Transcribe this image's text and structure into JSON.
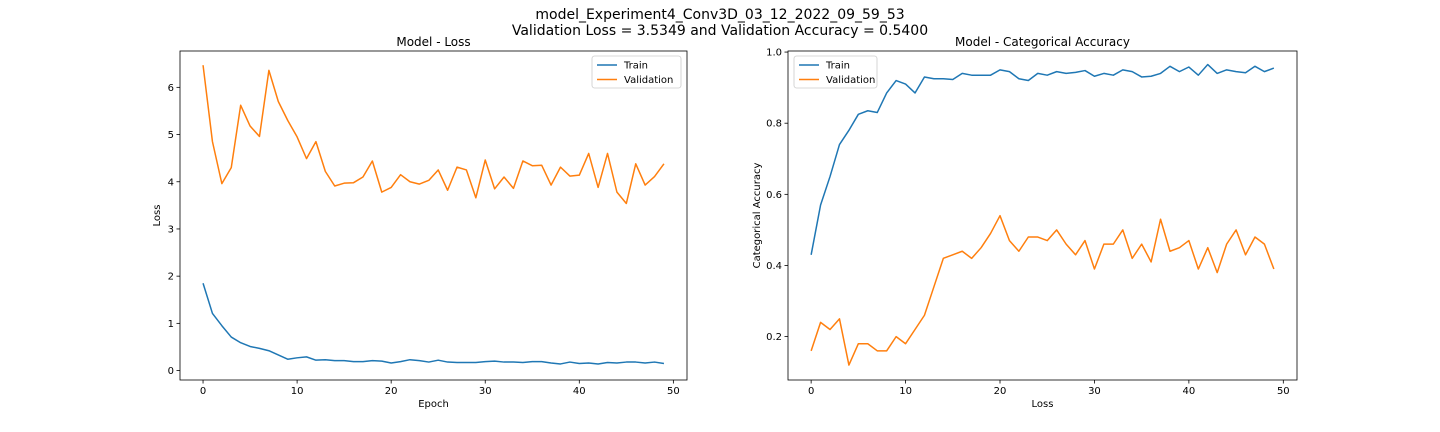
{
  "figure": {
    "suptitle_line1": "model_Experiment4_Conv3D_03_12_2022_09_59_53",
    "suptitle_line2": "Validation Loss = 3.5349 and Validation Accuracy = 0.5400"
  },
  "colors": {
    "train": "#1f77b4",
    "validation": "#ff7f0e",
    "axis": "#000000"
  },
  "chart_data": [
    {
      "type": "line",
      "title": "Model - Loss",
      "xlabel": "Epoch",
      "ylabel": "Loss",
      "xlim": [
        -2.45,
        51.45
      ],
      "ylim": [
        -0.2,
        6.77
      ],
      "xticks": [
        0,
        10,
        20,
        30,
        40,
        50
      ],
      "yticks": [
        0,
        1,
        2,
        3,
        4,
        5,
        6
      ],
      "xtick_labels": [
        "0",
        "10",
        "20",
        "30",
        "40",
        "50"
      ],
      "ytick_labels": [
        "0",
        "1",
        "2",
        "3",
        "4",
        "5",
        "6"
      ],
      "legend": "top-right",
      "grid": false,
      "x": [
        0,
        1,
        2,
        3,
        4,
        5,
        6,
        7,
        8,
        9,
        10,
        11,
        12,
        13,
        14,
        15,
        16,
        17,
        18,
        19,
        20,
        21,
        22,
        23,
        24,
        25,
        26,
        27,
        28,
        29,
        30,
        31,
        32,
        33,
        34,
        35,
        36,
        37,
        38,
        39,
        40,
        41,
        42,
        43,
        44,
        45,
        46,
        47,
        48,
        49
      ],
      "series": [
        {
          "name": "Train",
          "color": "#1f77b4",
          "values": [
            1.85,
            1.21,
            0.95,
            0.71,
            0.59,
            0.51,
            0.47,
            0.42,
            0.33,
            0.24,
            0.27,
            0.29,
            0.22,
            0.23,
            0.21,
            0.21,
            0.19,
            0.19,
            0.21,
            0.2,
            0.16,
            0.19,
            0.23,
            0.21,
            0.18,
            0.22,
            0.18,
            0.17,
            0.17,
            0.17,
            0.19,
            0.2,
            0.18,
            0.18,
            0.17,
            0.19,
            0.19,
            0.16,
            0.14,
            0.18,
            0.15,
            0.16,
            0.14,
            0.17,
            0.16,
            0.18,
            0.18,
            0.16,
            0.18,
            0.15
          ]
        },
        {
          "name": "Validation",
          "color": "#ff7f0e",
          "values": [
            6.47,
            4.85,
            3.96,
            4.3,
            5.62,
            5.18,
            4.96,
            6.36,
            5.7,
            5.3,
            4.95,
            4.49,
            4.85,
            4.22,
            3.91,
            3.97,
            3.98,
            4.1,
            4.44,
            3.78,
            3.88,
            4.15,
            4.0,
            3.95,
            4.03,
            4.25,
            3.82,
            4.31,
            4.25,
            3.66,
            4.46,
            3.85,
            4.1,
            3.86,
            4.44,
            4.34,
            4.35,
            3.93,
            4.31,
            4.12,
            4.14,
            4.6,
            3.88,
            4.6,
            3.78,
            3.54,
            4.38,
            3.93,
            4.11,
            4.38
          ]
        }
      ]
    },
    {
      "type": "line",
      "title": "Model - Categorical Accuracy",
      "xlabel": "Loss",
      "ylabel": "Categorical Accuracy",
      "xlim": [
        -2.45,
        51.45
      ],
      "ylim": [
        0.078,
        1.003
      ],
      "xticks": [
        0,
        10,
        20,
        30,
        40,
        50
      ],
      "yticks": [
        0.2,
        0.4,
        0.6,
        0.8,
        1.0
      ],
      "xtick_labels": [
        "0",
        "10",
        "20",
        "30",
        "40",
        "50"
      ],
      "ytick_labels": [
        "0.2",
        "0.4",
        "0.6",
        "0.8",
        "1.0"
      ],
      "legend": "top-left",
      "grid": false,
      "x": [
        0,
        1,
        2,
        3,
        4,
        5,
        6,
        7,
        8,
        9,
        10,
        11,
        12,
        13,
        14,
        15,
        16,
        17,
        18,
        19,
        20,
        21,
        22,
        23,
        24,
        25,
        26,
        27,
        28,
        29,
        30,
        31,
        32,
        33,
        34,
        35,
        36,
        37,
        38,
        39,
        40,
        41,
        42,
        43,
        44,
        45,
        46,
        47,
        48,
        49
      ],
      "series": [
        {
          "name": "Train",
          "color": "#1f77b4",
          "values": [
            0.43,
            0.57,
            0.65,
            0.74,
            0.78,
            0.825,
            0.835,
            0.83,
            0.885,
            0.92,
            0.91,
            0.885,
            0.93,
            0.925,
            0.925,
            0.923,
            0.94,
            0.935,
            0.935,
            0.935,
            0.95,
            0.945,
            0.925,
            0.92,
            0.94,
            0.935,
            0.945,
            0.94,
            0.943,
            0.948,
            0.932,
            0.94,
            0.935,
            0.95,
            0.945,
            0.93,
            0.932,
            0.94,
            0.96,
            0.945,
            0.958,
            0.935,
            0.965,
            0.94,
            0.95,
            0.945,
            0.942,
            0.96,
            0.945,
            0.955
          ]
        },
        {
          "name": "Validation",
          "color": "#ff7f0e",
          "values": [
            0.16,
            0.24,
            0.22,
            0.25,
            0.12,
            0.18,
            0.18,
            0.16,
            0.16,
            0.2,
            0.18,
            0.22,
            0.26,
            0.34,
            0.42,
            0.43,
            0.44,
            0.42,
            0.45,
            0.49,
            0.54,
            0.47,
            0.44,
            0.48,
            0.48,
            0.47,
            0.5,
            0.46,
            0.43,
            0.47,
            0.39,
            0.46,
            0.46,
            0.5,
            0.42,
            0.46,
            0.41,
            0.53,
            0.44,
            0.45,
            0.47,
            0.39,
            0.45,
            0.38,
            0.46,
            0.5,
            0.43,
            0.48,
            0.46,
            0.39
          ]
        }
      ]
    }
  ]
}
